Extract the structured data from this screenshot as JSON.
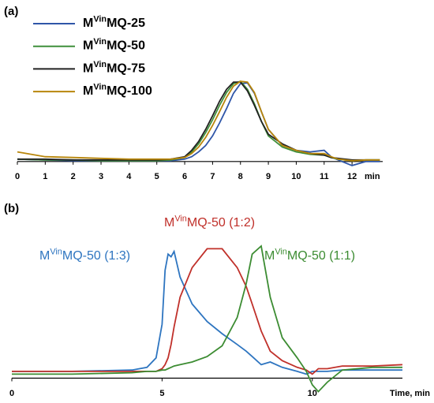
{
  "chart_data": [
    {
      "type": "line",
      "panel": "(a)",
      "x_label": "min",
      "x": [
        0,
        1,
        2,
        3,
        4,
        5,
        5.5,
        6,
        6.25,
        6.5,
        6.75,
        7,
        7.25,
        7.5,
        7.75,
        8,
        8.25,
        8.5,
        8.75,
        9,
        9.5,
        10,
        10.5,
        11,
        11.25,
        11.5,
        12,
        12.5,
        13
      ],
      "xlim": [
        0,
        13.1
      ],
      "xticks": [
        0,
        1,
        2,
        3,
        4,
        5,
        6,
        7,
        8,
        9,
        10,
        11,
        12
      ],
      "ylim": [
        -0.1,
        1.05
      ],
      "series": [
        {
          "name": "MVinMQ-25",
          "color": "#2f56a8",
          "values": [
            0.03,
            0.02,
            0.01,
            0.01,
            0.01,
            0.01,
            0.01,
            0.03,
            0.06,
            0.12,
            0.2,
            0.32,
            0.48,
            0.66,
            0.85,
            0.97,
            0.98,
            0.85,
            0.62,
            0.4,
            0.2,
            0.14,
            0.12,
            0.14,
            0.06,
            0.02,
            -0.05,
            0,
            0
          ]
        },
        {
          "name": "MVinMQ-50",
          "color": "#3f8f3a",
          "values": [
            0.03,
            0.02,
            0.02,
            0.01,
            0.01,
            0.01,
            0.02,
            0.05,
            0.12,
            0.22,
            0.36,
            0.52,
            0.7,
            0.86,
            0.97,
            1.0,
            0.9,
            0.72,
            0.5,
            0.32,
            0.18,
            0.12,
            0.09,
            0.08,
            0.05,
            0.03,
            0.01,
            0.02,
            0.02
          ]
        },
        {
          "name": "MVinMQ-75",
          "color": "#222222",
          "values": [
            0.03,
            0.03,
            0.02,
            0.02,
            0.02,
            0.02,
            0.03,
            0.06,
            0.14,
            0.25,
            0.4,
            0.57,
            0.75,
            0.9,
            0.99,
            0.99,
            0.88,
            0.7,
            0.5,
            0.34,
            0.22,
            0.14,
            0.1,
            0.08,
            0.05,
            0.04,
            0.02,
            0.02,
            0.02
          ]
        },
        {
          "name": "MVinMQ-100",
          "color": "#b8860b",
          "values": [
            0.12,
            0.06,
            0.05,
            0.04,
            0.03,
            0.03,
            0.03,
            0.05,
            0.1,
            0.18,
            0.3,
            0.45,
            0.62,
            0.8,
            0.94,
            1.0,
            0.99,
            0.86,
            0.62,
            0.4,
            0.2,
            0.14,
            0.1,
            0.1,
            0.06,
            0.03,
            0.01,
            0.02,
            0.02
          ]
        }
      ]
    },
    {
      "type": "line",
      "panel": "(b)",
      "x_label": "Time, min",
      "x": [
        0,
        2,
        4,
        4.5,
        4.8,
        5,
        5.1,
        5.2,
        5.3,
        5.4,
        5.6,
        6,
        6.5,
        7,
        7.5,
        7.8,
        8,
        8.3,
        8.6,
        9,
        9.5,
        9.8,
        10,
        10.2,
        10.5,
        11,
        12,
        13
      ],
      "xlim": [
        0,
        13
      ],
      "xticks": [
        0,
        5,
        10
      ],
      "ylim": [
        -0.12,
        1.05
      ],
      "series": [
        {
          "name": "MVinMQ-50 (1:3)",
          "color": "#2e75c0",
          "values": [
            0.05,
            0.05,
            0.06,
            0.08,
            0.15,
            0.4,
            0.8,
            0.92,
            0.9,
            0.94,
            0.75,
            0.55,
            0.42,
            0.33,
            0.25,
            0.2,
            0.16,
            0.1,
            0.12,
            0.08,
            0.05,
            0.03,
            0.05,
            0.05,
            0.05,
            0.06,
            0.06,
            0.06
          ]
        },
        {
          "name": "MVinMQ-50 (1:2)",
          "color": "#c0302a",
          "values": [
            0.05,
            0.05,
            0.05,
            0.05,
            0.05,
            0.07,
            0.1,
            0.15,
            0.25,
            0.38,
            0.6,
            0.82,
            0.96,
            0.96,
            0.82,
            0.68,
            0.55,
            0.35,
            0.2,
            0.13,
            0.08,
            0.06,
            0.03,
            0.07,
            0.07,
            0.09,
            0.09,
            0.1
          ]
        },
        {
          "name": "MVinMQ-50 (1:1)",
          "color": "#3c8c32",
          "values": [
            0.03,
            0.03,
            0.04,
            0.05,
            0.05,
            0.06,
            0.06,
            0.07,
            0.08,
            0.09,
            0.1,
            0.12,
            0.16,
            0.24,
            0.45,
            0.7,
            0.92,
            0.98,
            0.6,
            0.3,
            0.15,
            0.05,
            -0.05,
            -0.1,
            -0.03,
            0.06,
            0.08,
            0.08
          ]
        }
      ]
    }
  ]
}
